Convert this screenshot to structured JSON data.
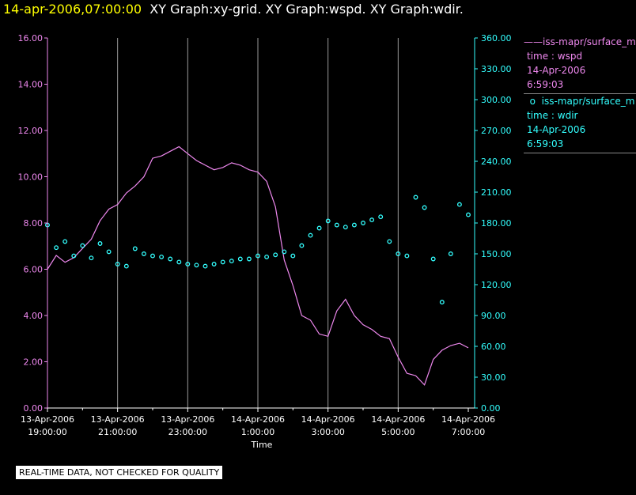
{
  "header": {
    "timestamp": "14-apr-2006,07:00:00",
    "graphs": "XY Graph:xy-grid.  XY Graph:wspd.  XY Graph:wdir."
  },
  "legend": {
    "wspd": {
      "symbol": "——",
      "source": "iss-mapr/surface_m",
      "field": "time : wspd",
      "date": "14-Apr-2006",
      "time": "6:59:03"
    },
    "wdir": {
      "symbol": "o",
      "source": "iss-mapr/surface_m",
      "field": "time : wdir",
      "date": "14-Apr-2006",
      "time": "6:59:03"
    }
  },
  "footer": {
    "disclaimer": "REAL-TIME DATA, NOT CHECKED FOR QUALITY"
  },
  "colors": {
    "wspd": "#ee88ee",
    "wdir": "#33ffff",
    "grid": "#9a9a9a",
    "axis": "#ffffff",
    "timestamp": "#ffff00"
  },
  "chart_data": {
    "type": "line",
    "xlabel": "Time",
    "xlim": [
      "2006-04-13 19:00",
      "2006-04-14 07:00"
    ],
    "x_ticks": [
      {
        "date": "13-Apr-2006",
        "time": "19:00:00"
      },
      {
        "date": "13-Apr-2006",
        "time": "21:00:00"
      },
      {
        "date": "13-Apr-2006",
        "time": "23:00:00"
      },
      {
        "date": "14-Apr-2006",
        "time": "1:00:00"
      },
      {
        "date": "14-Apr-2006",
        "time": "3:00:00"
      },
      {
        "date": "14-Apr-2006",
        "time": "5:00:00"
      },
      {
        "date": "14-Apr-2006",
        "time": "7:00:00"
      }
    ],
    "y_left": {
      "lim": [
        0,
        16
      ],
      "ticks": [
        "0.00",
        "2.00",
        "4.00",
        "6.00",
        "8.00",
        "10.00",
        "12.00",
        "14.00",
        "16.00"
      ]
    },
    "y_right": {
      "lim": [
        0,
        360
      ],
      "ticks": [
        "0.00",
        "30.00",
        "60.00",
        "90.00",
        "120.00",
        "150.00",
        "180.00",
        "210.00",
        "240.00",
        "270.00",
        "300.00",
        "330.00",
        "360.00"
      ]
    },
    "grid": "vertical",
    "series": [
      {
        "key": "wspd",
        "axis": "left",
        "style": "line",
        "x": [
          "2006-04-13 19:00",
          "2006-04-13 19:15",
          "2006-04-13 19:30",
          "2006-04-13 19:45",
          "2006-04-13 20:00",
          "2006-04-13 20:15",
          "2006-04-13 20:30",
          "2006-04-13 20:45",
          "2006-04-13 21:00",
          "2006-04-13 21:15",
          "2006-04-13 21:30",
          "2006-04-13 21:45",
          "2006-04-13 22:00",
          "2006-04-13 22:15",
          "2006-04-13 22:30",
          "2006-04-13 22:45",
          "2006-04-13 23:00",
          "2006-04-13 23:15",
          "2006-04-13 23:30",
          "2006-04-13 23:45",
          "2006-04-14 00:00",
          "2006-04-14 00:15",
          "2006-04-14 00:30",
          "2006-04-14 00:45",
          "2006-04-14 01:00",
          "2006-04-14 01:15",
          "2006-04-14 01:30",
          "2006-04-14 01:45",
          "2006-04-14 02:00",
          "2006-04-14 02:15",
          "2006-04-14 02:30",
          "2006-04-14 02:45",
          "2006-04-14 03:00",
          "2006-04-14 03:15",
          "2006-04-14 03:30",
          "2006-04-14 03:45",
          "2006-04-14 04:00",
          "2006-04-14 04:15",
          "2006-04-14 04:30",
          "2006-04-14 04:45",
          "2006-04-14 05:00",
          "2006-04-14 05:15",
          "2006-04-14 05:30",
          "2006-04-14 05:45",
          "2006-04-14 06:00",
          "2006-04-14 06:15",
          "2006-04-14 06:30",
          "2006-04-14 06:45",
          "2006-04-14 07:00"
        ],
        "y": [
          6.0,
          6.6,
          6.3,
          6.5,
          6.9,
          7.3,
          8.1,
          8.6,
          8.8,
          9.3,
          9.6,
          10.0,
          10.8,
          10.9,
          11.1,
          11.3,
          11.0,
          10.7,
          10.5,
          10.3,
          10.4,
          10.6,
          10.5,
          10.3,
          10.2,
          9.8,
          8.7,
          6.4,
          5.3,
          4.0,
          3.8,
          3.2,
          3.1,
          4.2,
          4.7,
          4.0,
          3.6,
          3.4,
          3.1,
          3.0,
          2.2,
          1.5,
          1.4,
          1.0,
          2.1,
          2.5,
          2.7,
          2.8,
          2.6
        ]
      },
      {
        "key": "wdir",
        "axis": "right",
        "style": "points",
        "x": [
          "2006-04-13 19:00",
          "2006-04-13 19:15",
          "2006-04-13 19:30",
          "2006-04-13 19:45",
          "2006-04-13 20:00",
          "2006-04-13 20:15",
          "2006-04-13 20:30",
          "2006-04-13 20:45",
          "2006-04-13 21:00",
          "2006-04-13 21:15",
          "2006-04-13 21:30",
          "2006-04-13 21:45",
          "2006-04-13 22:00",
          "2006-04-13 22:15",
          "2006-04-13 22:30",
          "2006-04-13 22:45",
          "2006-04-13 23:00",
          "2006-04-13 23:15",
          "2006-04-13 23:30",
          "2006-04-13 23:45",
          "2006-04-14 00:00",
          "2006-04-14 00:15",
          "2006-04-14 00:30",
          "2006-04-14 00:45",
          "2006-04-14 01:00",
          "2006-04-14 01:15",
          "2006-04-14 01:30",
          "2006-04-14 01:45",
          "2006-04-14 02:00",
          "2006-04-14 02:15",
          "2006-04-14 02:30",
          "2006-04-14 02:45",
          "2006-04-14 03:00",
          "2006-04-14 03:15",
          "2006-04-14 03:30",
          "2006-04-14 03:45",
          "2006-04-14 04:00",
          "2006-04-14 04:15",
          "2006-04-14 04:30",
          "2006-04-14 04:45",
          "2006-04-14 05:00",
          "2006-04-14 05:15",
          "2006-04-14 05:30",
          "2006-04-14 05:45",
          "2006-04-14 06:00",
          "2006-04-14 06:15",
          "2006-04-14 06:30",
          "2006-04-14 06:45",
          "2006-04-14 07:00"
        ],
        "y": [
          178,
          156,
          162,
          148,
          158,
          146,
          160,
          152,
          140,
          138,
          155,
          150,
          148,
          147,
          145,
          142,
          140,
          139,
          138,
          140,
          142,
          143,
          145,
          145,
          148,
          147,
          149,
          152,
          148,
          158,
          168,
          175,
          182,
          178,
          176,
          178,
          180,
          183,
          186,
          162,
          150,
          148,
          205,
          195,
          145,
          103,
          150,
          198,
          188
        ]
      }
    ]
  }
}
